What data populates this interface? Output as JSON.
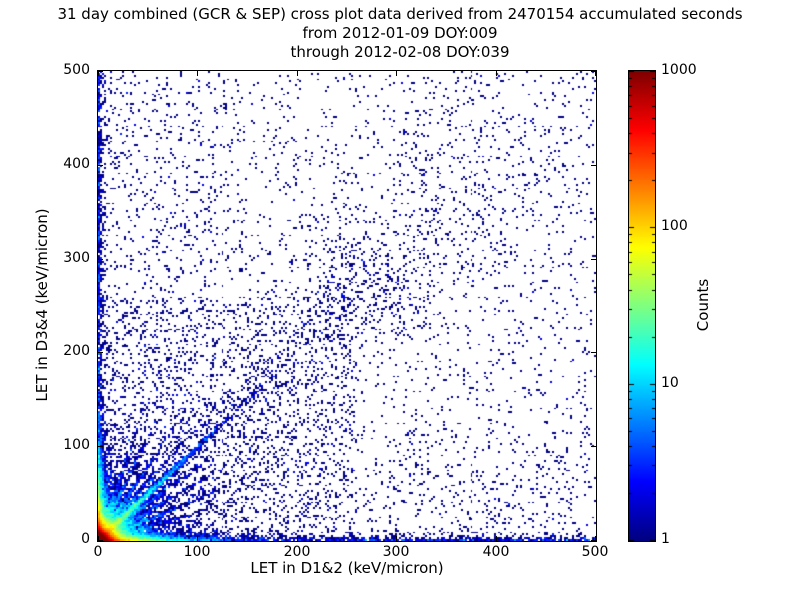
{
  "chart_data": {
    "type": "heatmap",
    "title_lines": [
      "31 day combined (GCR & SEP) cross plot data derived from 2470154 accumulated seconds",
      "from 2012-01-09 DOY:009",
      "through 2012-02-08 DOY:039"
    ],
    "xlabel": "LET in D1&2 (keV/micron)",
    "ylabel": "LET in D3&4 (keV/micron)",
    "xlim": [
      0,
      500
    ],
    "ylim": [
      0,
      500
    ],
    "xticks": [
      0,
      100,
      200,
      300,
      400,
      500
    ],
    "yticks": [
      0,
      100,
      200,
      300,
      400,
      500
    ],
    "grid": false,
    "colorbar": {
      "label": "Counts",
      "scale": "log",
      "min": 1,
      "max": 1000,
      "ticks": [
        1,
        10,
        100,
        1000
      ],
      "colormap": "jet"
    },
    "seed": 42,
    "density_features": [
      {
        "kind": "exp_blob",
        "desc": "intense hot core at origin, peak counts ~1000",
        "x_scale": 4,
        "y_scale": 4,
        "n": 45000
      },
      {
        "kind": "exp_blob",
        "desc": "medium halo around core",
        "x_scale": 10,
        "y_scale": 10,
        "n": 6000
      },
      {
        "kind": "exp_blob",
        "desc": "faint wide halo",
        "x_scale": 25,
        "y_scale": 25,
        "n": 2500
      },
      {
        "kind": "exp_blob",
        "desc": "wedge hugging x-axis",
        "x_scale": 28,
        "y_scale": 3,
        "n": 6000
      },
      {
        "kind": "exp_blob",
        "desc": "wedge hugging y-axis",
        "x_scale": 3,
        "y_scale": 28,
        "n": 6000
      },
      {
        "kind": "ray",
        "desc": "main y=x diagonal streak",
        "slope": 1.0,
        "r_scale": 45,
        "r_max": 340,
        "jitter": 1.6,
        "n": 3500
      },
      {
        "kind": "ray",
        "slope": 0.3,
        "r_scale": 35,
        "r_max": 190,
        "jitter": 1.3,
        "n": 500
      },
      {
        "kind": "ray",
        "slope": 0.45,
        "r_scale": 35,
        "r_max": 190,
        "jitter": 1.3,
        "n": 700
      },
      {
        "kind": "ray",
        "slope": 0.62,
        "r_scale": 35,
        "r_max": 190,
        "jitter": 1.3,
        "n": 700
      },
      {
        "kind": "ray",
        "slope": 0.8,
        "r_scale": 35,
        "r_max": 190,
        "jitter": 1.3,
        "n": 700
      },
      {
        "kind": "ray",
        "slope": 1.25,
        "r_scale": 35,
        "r_max": 190,
        "jitter": 1.3,
        "n": 700
      },
      {
        "kind": "ray",
        "slope": 1.6,
        "r_scale": 35,
        "r_max": 190,
        "jitter": 1.3,
        "n": 700
      },
      {
        "kind": "ray",
        "slope": 2.2,
        "r_scale": 35,
        "r_max": 190,
        "jitter": 1.3,
        "n": 600
      },
      {
        "kind": "ray",
        "slope": 3.0,
        "r_scale": 35,
        "r_max": 190,
        "jitter": 1.3,
        "n": 450
      },
      {
        "kind": "diag_scatter",
        "desc": "sparse scatter along diagonal out to ~430",
        "slope": 1.0,
        "rel_sigma": 0.15,
        "r_min": 80,
        "r_max": 600,
        "n": 800
      },
      {
        "kind": "cluster",
        "desc": "loose clump on diagonal",
        "cx": 255,
        "cy": 265,
        "sx": 30,
        "sy": 30,
        "n": 240
      },
      {
        "kind": "vband",
        "desc": "points hugging y-axis full height",
        "sigma": 1.8,
        "y0": 0,
        "y1": 500,
        "n": 600
      },
      {
        "kind": "vband",
        "sigma": 5,
        "y0": 0,
        "y1": 500,
        "n": 250
      },
      {
        "kind": "hband",
        "desc": "points hugging x-axis full width",
        "sigma": 1.8,
        "x0": 0,
        "x1": 500,
        "n": 600
      },
      {
        "kind": "hband",
        "sigma": 5,
        "x0": 0,
        "x1": 500,
        "n": 250
      },
      {
        "kind": "uniform",
        "desc": "isolated single-count events everywhere",
        "x0": 0,
        "x1": 500,
        "y0": 0,
        "y1": 500,
        "n": 2600
      },
      {
        "kind": "uniform",
        "desc": "denser speckle lower-left quadrant",
        "x0": 0,
        "x1": 260,
        "y0": 0,
        "y1": 260,
        "n": 1600
      },
      {
        "kind": "uniform",
        "x0": 0,
        "x1": 120,
        "y0": 0,
        "y1": 500,
        "n": 500
      },
      {
        "kind": "uniform",
        "x0": 0,
        "x1": 500,
        "y0": 0,
        "y1": 120,
        "n": 500
      },
      {
        "kind": "column",
        "desc": "loose vertical chain near x=320",
        "cx": 320,
        "sx": 12,
        "y0": 60,
        "y1": 490,
        "n": 90
      }
    ]
  }
}
